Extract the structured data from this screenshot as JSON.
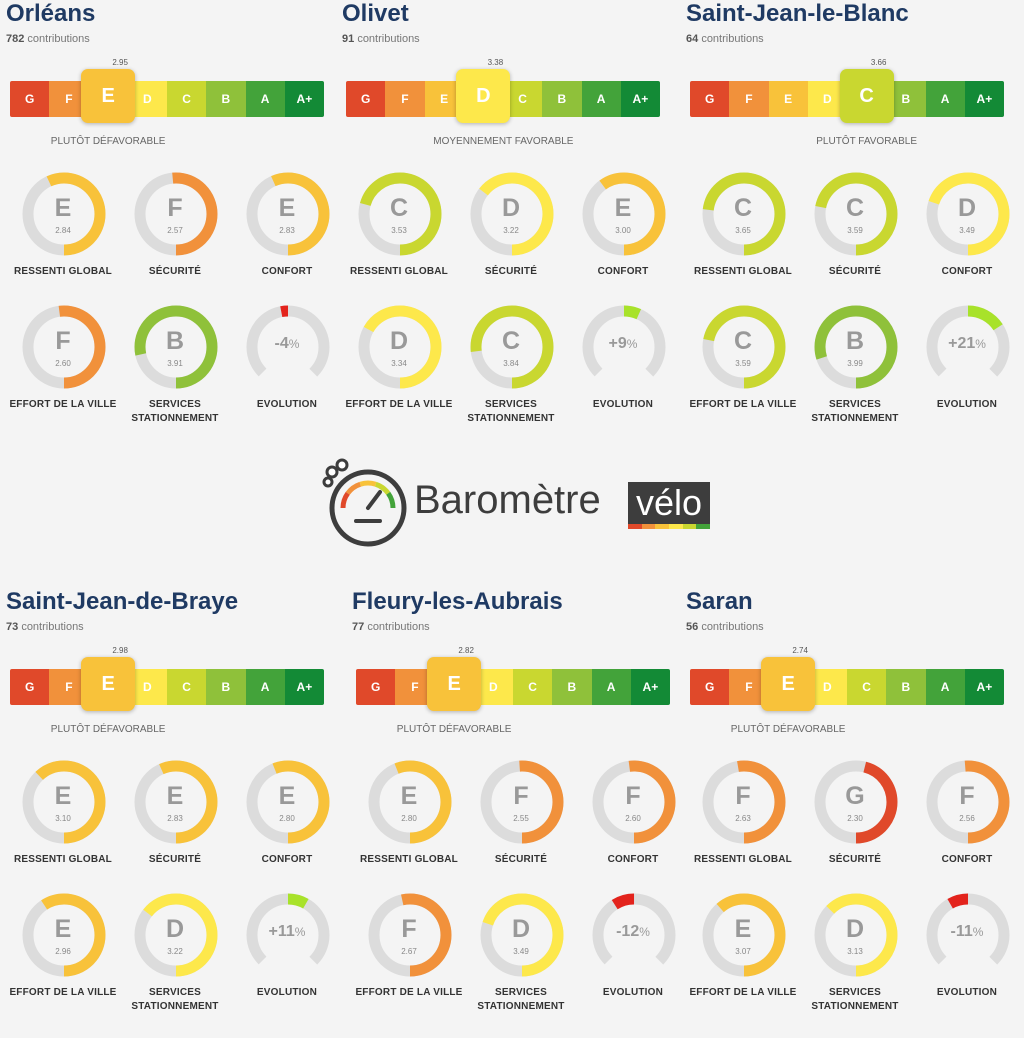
{
  "scale": {
    "letters": [
      "G",
      "F",
      "E",
      "D",
      "C",
      "B",
      "A",
      "A+"
    ],
    "colors": [
      "#e0492a",
      "#f1913b",
      "#f8c23a",
      "#fde84b",
      "#c9d730",
      "#8fc13a",
      "#43a33a",
      "#138a36"
    ]
  },
  "labels": {
    "ressenti": "RESSENTI GLOBAL",
    "securite": "SÉCURITÉ",
    "confort": "CONFORT",
    "effort": "EFFORT DE LA VILLE",
    "services": "SERVICES STATIONNEMENT",
    "evolution": "EVOLUTION",
    "contrib_suffix": "contributions"
  },
  "colors": {
    "track": "#dcdcdc",
    "evolution_negative": "#e3231c",
    "evolution_positive": "#a8e22a"
  },
  "logo": {
    "text": "Baromètre",
    "badge": "vélo"
  },
  "cities": [
    {
      "name": "Orléans",
      "contributions": "782",
      "overall": {
        "letter": "E",
        "score": "2.95",
        "verdict": "PLUTÔT DÉFAVORABLE"
      },
      "gauges": [
        {
          "key": "ressenti",
          "letter": "E",
          "score": "2.84"
        },
        {
          "key": "securite",
          "letter": "F",
          "score": "2.57"
        },
        {
          "key": "confort",
          "letter": "E",
          "score": "2.83"
        },
        {
          "key": "effort",
          "letter": "F",
          "score": "2.60"
        },
        {
          "key": "services",
          "letter": "B",
          "score": "3.91"
        },
        {
          "key": "evolution",
          "value": "-4",
          "unit": "%"
        }
      ]
    },
    {
      "name": "Olivet",
      "contributions": "91",
      "overall": {
        "letter": "D",
        "score": "3.38",
        "verdict": "MOYENNEMENT FAVORABLE"
      },
      "gauges": [
        {
          "key": "ressenti",
          "letter": "C",
          "score": "3.53"
        },
        {
          "key": "securite",
          "letter": "D",
          "score": "3.22"
        },
        {
          "key": "confort",
          "letter": "E",
          "score": "3.00"
        },
        {
          "key": "effort",
          "letter": "D",
          "score": "3.34"
        },
        {
          "key": "services",
          "letter": "C",
          "score": "3.84"
        },
        {
          "key": "evolution",
          "value": "+9",
          "unit": "%"
        }
      ]
    },
    {
      "name": "Saint-Jean-le-Blanc",
      "contributions": "64",
      "overall": {
        "letter": "C",
        "score": "3.66",
        "verdict": "PLUTÔT FAVORABLE"
      },
      "gauges": [
        {
          "key": "ressenti",
          "letter": "C",
          "score": "3.65"
        },
        {
          "key": "securite",
          "letter": "C",
          "score": "3.59"
        },
        {
          "key": "confort",
          "letter": "D",
          "score": "3.49"
        },
        {
          "key": "effort",
          "letter": "C",
          "score": "3.59"
        },
        {
          "key": "services",
          "letter": "B",
          "score": "3.99"
        },
        {
          "key": "evolution",
          "value": "+21",
          "unit": "%"
        }
      ]
    },
    {
      "name": "Saint-Jean-de-Braye",
      "contributions": "73",
      "overall": {
        "letter": "E",
        "score": "2.98",
        "verdict": "PLUTÔT DÉFAVORABLE"
      },
      "gauges": [
        {
          "key": "ressenti",
          "letter": "E",
          "score": "3.10"
        },
        {
          "key": "securite",
          "letter": "E",
          "score": "2.83"
        },
        {
          "key": "confort",
          "letter": "E",
          "score": "2.80"
        },
        {
          "key": "effort",
          "letter": "E",
          "score": "2.96"
        },
        {
          "key": "services",
          "letter": "D",
          "score": "3.22"
        },
        {
          "key": "evolution",
          "value": "+11",
          "unit": "%"
        }
      ]
    },
    {
      "name": "Fleury-les-Aubrais",
      "contributions": "77",
      "overall": {
        "letter": "E",
        "score": "2.82",
        "verdict": "PLUTÔT DÉFAVORABLE"
      },
      "gauges": [
        {
          "key": "ressenti",
          "letter": "E",
          "score": "2.80"
        },
        {
          "key": "securite",
          "letter": "F",
          "score": "2.55"
        },
        {
          "key": "confort",
          "letter": "F",
          "score": "2.60"
        },
        {
          "key": "effort",
          "letter": "F",
          "score": "2.67"
        },
        {
          "key": "services",
          "letter": "D",
          "score": "3.49"
        },
        {
          "key": "evolution",
          "value": "-12",
          "unit": "%"
        }
      ]
    },
    {
      "name": "Saran",
      "contributions": "56",
      "overall": {
        "letter": "E",
        "score": "2.74",
        "verdict": "PLUTÔT DÉFAVORABLE"
      },
      "gauges": [
        {
          "key": "ressenti",
          "letter": "F",
          "score": "2.63"
        },
        {
          "key": "securite",
          "letter": "G",
          "score": "2.30"
        },
        {
          "key": "confort",
          "letter": "F",
          "score": "2.56"
        },
        {
          "key": "effort",
          "letter": "E",
          "score": "3.07"
        },
        {
          "key": "services",
          "letter": "D",
          "score": "3.13"
        },
        {
          "key": "evolution",
          "value": "-11",
          "unit": "%"
        }
      ]
    }
  ]
}
